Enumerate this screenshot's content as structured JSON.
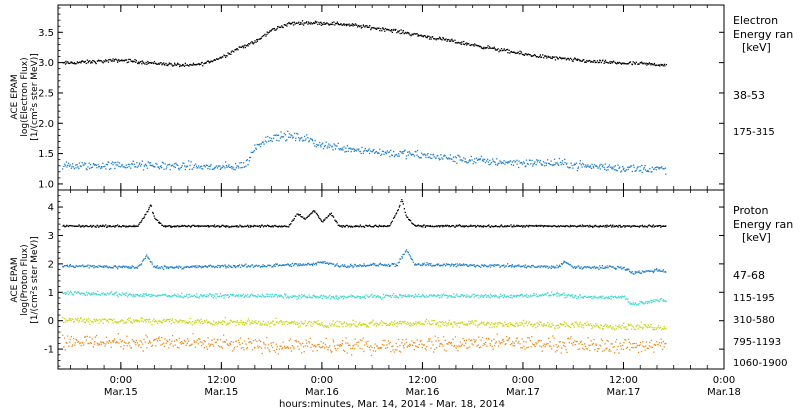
{
  "x_axis": {
    "title": "hours:minutes, Mar. 14, 2014 - Mar. 18, 2014",
    "range_hours_since_mar14_0000": [
      16.5,
      96
    ],
    "ticks": [
      {
        "hour": 24,
        "time": "0:00",
        "date": "Mar.15"
      },
      {
        "hour": 36,
        "time": "12:00",
        "date": "Mar.15"
      },
      {
        "hour": 48,
        "time": "0:00",
        "date": "Mar.16"
      },
      {
        "hour": 60,
        "time": "12:00",
        "date": "Mar.16"
      },
      {
        "hour": 72,
        "time": "0:00",
        "date": "Mar.17"
      },
      {
        "hour": 84,
        "time": "12:00",
        "date": "Mar.17"
      },
      {
        "hour": 96,
        "time": "0:00",
        "date": "Mar.18"
      }
    ]
  },
  "chart_data": [
    {
      "type": "scatter",
      "panel": "electron",
      "ylabel_lines": [
        "ACE EPAM",
        "log(Electron Flux)",
        "[1/(cm²s ster MeV)]"
      ],
      "ylim": [
        0.9,
        3.95
      ],
      "yticks": [
        "1.0",
        "1.5",
        "2.0",
        "2.5",
        "3.0",
        "3.5"
      ],
      "ytick_values": [
        1.0,
        1.5,
        2.0,
        2.5,
        3.0,
        3.5
      ],
      "legend_title": [
        "Electron",
        "Energy ran",
        "[keV]"
      ],
      "series": [
        {
          "name": "38-53",
          "color": "#000000",
          "x": [
            17,
            20,
            24,
            28,
            32,
            34,
            36,
            38,
            40,
            41,
            42,
            43,
            44,
            46,
            48,
            50,
            52,
            56,
            60,
            64,
            68,
            72,
            76,
            80,
            84,
            88,
            89
          ],
          "y": [
            3.0,
            3.02,
            3.05,
            3.0,
            2.96,
            3.0,
            3.1,
            3.25,
            3.35,
            3.45,
            3.55,
            3.6,
            3.65,
            3.67,
            3.66,
            3.65,
            3.62,
            3.55,
            3.45,
            3.35,
            3.25,
            3.15,
            3.08,
            3.03,
            3.0,
            2.98,
            2.97
          ],
          "noise": 0.025
        },
        {
          "name": "175-315",
          "color": "#2080d0",
          "x": [
            17,
            24,
            32,
            36,
            38,
            39,
            40,
            41,
            42,
            44,
            46,
            48,
            52,
            56,
            60,
            64,
            68,
            72,
            76,
            80,
            84,
            89
          ],
          "y": [
            1.3,
            1.32,
            1.3,
            1.28,
            1.3,
            1.35,
            1.62,
            1.72,
            1.78,
            1.8,
            1.75,
            1.65,
            1.58,
            1.52,
            1.48,
            1.42,
            1.38,
            1.36,
            1.35,
            1.3,
            1.27,
            1.25
          ],
          "noise": 0.06
        }
      ]
    },
    {
      "type": "scatter",
      "panel": "proton",
      "ylabel_lines": [
        "ACE EPAM",
        "log(Proton Flux)",
        "[1/(cm²s ster MeV)]"
      ],
      "ylim": [
        -1.7,
        4.6
      ],
      "yticks": [
        "-1",
        "0",
        "1",
        "2",
        "3",
        "4"
      ],
      "ytick_values": [
        -1,
        0,
        1,
        2,
        3,
        4
      ],
      "legend_title": [
        "Proton",
        "Energy ran",
        "[keV]"
      ],
      "series": [
        {
          "name": "47-68",
          "color": "#000000",
          "x": [
            17,
            26,
            27,
            27.5,
            28,
            29,
            44,
            45,
            46,
            47,
            48,
            49,
            50,
            56,
            57,
            57.5,
            58,
            59,
            70,
            80,
            89
          ],
          "y": [
            3.35,
            3.35,
            3.8,
            4.1,
            3.6,
            3.35,
            3.35,
            3.8,
            3.6,
            3.9,
            3.5,
            3.8,
            3.35,
            3.35,
            3.9,
            4.3,
            3.7,
            3.35,
            3.35,
            3.35,
            3.35
          ],
          "noise": 0.03
        },
        {
          "name": "115-195",
          "color": "#2080d0",
          "x": [
            17,
            26,
            27,
            28,
            29,
            40,
            47,
            48,
            50,
            57,
            58,
            59,
            70,
            76,
            77,
            78,
            84,
            85,
            88,
            89
          ],
          "y": [
            1.95,
            1.9,
            2.3,
            1.9,
            1.9,
            1.95,
            2.0,
            2.1,
            1.95,
            2.0,
            2.5,
            2.0,
            1.95,
            1.9,
            2.1,
            1.9,
            1.9,
            1.7,
            1.8,
            1.75
          ],
          "noise": 0.05
        },
        {
          "name": "310-580",
          "color": "#40d8d0",
          "x": [
            17,
            30,
            40,
            50,
            60,
            70,
            76,
            78,
            84,
            85,
            88,
            89
          ],
          "y": [
            1.0,
            0.9,
            0.9,
            0.85,
            0.9,
            0.88,
            0.95,
            0.85,
            0.85,
            0.6,
            0.75,
            0.7
          ],
          "noise": 0.06
        },
        {
          "name": "795-1193",
          "color": "#c8d810",
          "x": [
            17,
            30,
            40,
            50,
            60,
            70,
            80,
            89
          ],
          "y": [
            0.05,
            0.0,
            -0.05,
            -0.1,
            -0.05,
            -0.1,
            -0.15,
            -0.2
          ],
          "noise": 0.1
        },
        {
          "name": "1060-1900",
          "color": "#f08c18",
          "x": [
            17,
            30,
            40,
            50,
            60,
            70,
            80,
            89
          ],
          "y": [
            -0.7,
            -0.75,
            -0.85,
            -0.9,
            -0.8,
            -0.75,
            -0.85,
            -0.85
          ],
          "noise": 0.22
        }
      ]
    }
  ]
}
